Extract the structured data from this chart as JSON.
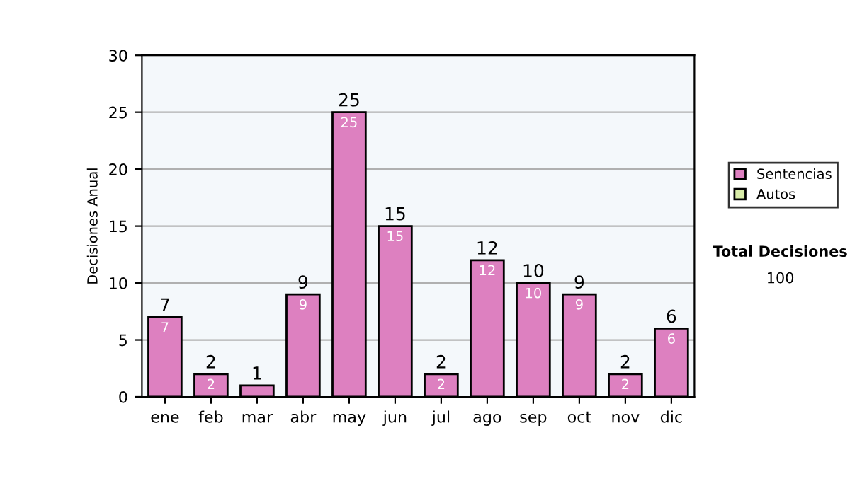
{
  "chart_data": {
    "type": "bar",
    "stacked": true,
    "ylabel": "Decisiones Anual",
    "categories": [
      "ene",
      "feb",
      "mar",
      "abr",
      "may",
      "jun",
      "jul",
      "ago",
      "sep",
      "oct",
      "nov",
      "dic"
    ],
    "series": [
      {
        "name": "Sentencias",
        "color": "#dd80c0",
        "values": [
          7,
          2,
          1,
          9,
          25,
          15,
          2,
          12,
          10,
          9,
          2,
          6
        ],
        "value_labels": [
          "7",
          "2",
          null,
          "9",
          "25",
          "15",
          "2",
          "12",
          "10",
          "9",
          "2",
          "6"
        ]
      },
      {
        "name": "Autos",
        "color": "#d8eca8",
        "values": [
          0,
          0,
          0,
          0,
          0,
          0,
          0,
          0,
          0,
          0,
          0,
          0
        ]
      }
    ],
    "totals": [
      "7",
      "2",
      "1",
      "9",
      "25",
      "15",
      "2",
      "12",
      "10",
      "9",
      "2",
      "6"
    ],
    "ylim": [
      0,
      30
    ],
    "yticks": [
      0,
      5,
      10,
      15,
      20,
      25,
      30
    ],
    "grid": "y",
    "legend": "right",
    "annotations": [
      "Total Decisiones",
      "100"
    ]
  }
}
